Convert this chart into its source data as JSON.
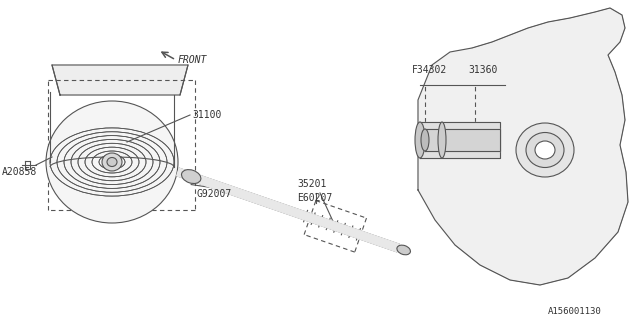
{
  "bg_color": "#ffffff",
  "line_color": "#555555",
  "line_width": 0.8,
  "diagram_id": "A156001130",
  "front_label": "FRONT",
  "title_color": "#333333",
  "font_size": 7,
  "labels": {
    "bolt": "A20858",
    "bearing": "G92007",
    "snap_ring": "E60207",
    "shaft": "35201",
    "converter": "31100",
    "sleeve1": "F34302",
    "sleeve2": "31360"
  }
}
